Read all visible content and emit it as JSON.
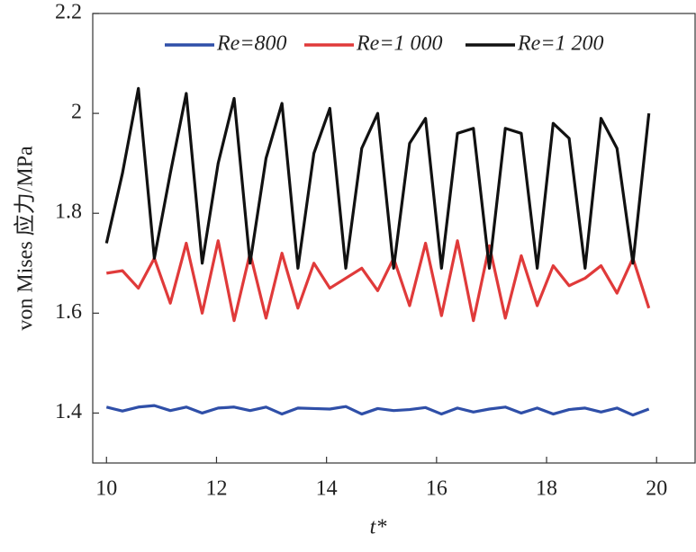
{
  "chart_data": {
    "type": "line",
    "x_label": "t*",
    "y_label": "von Mises 应力/MPa",
    "x": [
      10.0,
      10.29,
      10.58,
      10.87,
      11.16,
      11.45,
      11.74,
      12.03,
      12.32,
      12.61,
      12.9,
      13.19,
      13.48,
      13.77,
      14.06,
      14.35,
      14.64,
      14.93,
      15.22,
      15.51,
      15.8,
      16.09,
      16.38,
      16.67,
      16.96,
      17.25,
      17.54,
      17.83,
      18.12,
      18.41,
      18.7,
      18.99,
      19.28,
      19.57,
      19.86
    ],
    "series": [
      {
        "name": "Re=800",
        "color": "#2f4fa8",
        "values": [
          1.412,
          1.404,
          1.412,
          1.415,
          1.405,
          1.412,
          1.4,
          1.41,
          1.412,
          1.405,
          1.412,
          1.398,
          1.41,
          1.409,
          1.408,
          1.413,
          1.398,
          1.409,
          1.405,
          1.407,
          1.411,
          1.398,
          1.41,
          1.402,
          1.408,
          1.412,
          1.4,
          1.41,
          1.398,
          1.407,
          1.41,
          1.402,
          1.41,
          1.396,
          1.408
        ]
      },
      {
        "name": "Re=1 000",
        "color": "#e03a3a",
        "values": [
          1.68,
          1.685,
          1.65,
          1.71,
          1.62,
          1.74,
          1.6,
          1.745,
          1.585,
          1.72,
          1.59,
          1.72,
          1.61,
          1.7,
          1.65,
          1.67,
          1.69,
          1.645,
          1.71,
          1.615,
          1.74,
          1.595,
          1.745,
          1.585,
          1.735,
          1.59,
          1.715,
          1.615,
          1.695,
          1.655,
          1.67,
          1.695,
          1.64,
          1.71,
          1.61
        ]
      },
      {
        "name": "Re=1 200",
        "color": "#111111",
        "values": [
          1.74,
          1.88,
          2.05,
          1.71,
          1.88,
          2.04,
          1.7,
          1.9,
          2.03,
          1.7,
          1.91,
          2.02,
          1.69,
          1.92,
          2.01,
          1.69,
          1.93,
          2.0,
          1.69,
          1.94,
          1.99,
          1.69,
          1.96,
          1.97,
          1.69,
          1.97,
          1.96,
          1.69,
          1.98,
          1.95,
          1.69,
          1.99,
          1.93,
          1.7,
          2.0
        ]
      }
    ],
    "xlim": [
      9.75,
      20.7
    ],
    "xticks": [
      10,
      12,
      14,
      16,
      18,
      20
    ],
    "ylim": [
      1.3,
      2.2
    ],
    "yticks": [
      1.4,
      1.6,
      1.8,
      2.0,
      2.2
    ],
    "legend": "top"
  }
}
